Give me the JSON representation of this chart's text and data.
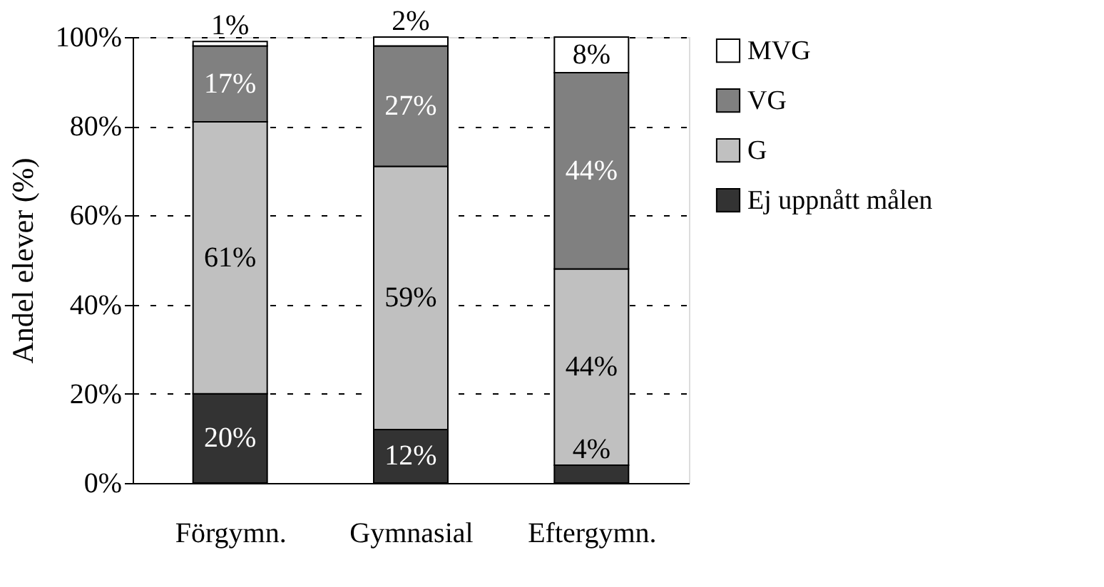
{
  "chart_data": {
    "type": "bar",
    "stacked": true,
    "ylabel": "Andel elever (%)",
    "categories": [
      "Förgymn.",
      "Gymnasial",
      "Eftergymn."
    ],
    "series": [
      {
        "name": "Ej uppnått målen",
        "color": "#333333",
        "values": [
          20,
          12,
          4
        ],
        "value_labels": [
          "20%",
          "12%",
          "4%"
        ]
      },
      {
        "name": "G",
        "color": "#c0c0c0",
        "values": [
          61,
          59,
          44
        ],
        "value_labels": [
          "61%",
          "59%",
          "44%"
        ]
      },
      {
        "name": "VG",
        "color": "#808080",
        "values": [
          17,
          27,
          44
        ],
        "value_labels": [
          "17%",
          "27%",
          "44%"
        ]
      },
      {
        "name": "MVG",
        "color": "#ffffff",
        "values": [
          1,
          2,
          8
        ],
        "value_labels": [
          "1%",
          "2%",
          "8%"
        ]
      }
    ],
    "ylim": [
      0,
      100
    ],
    "yticks": [
      {
        "value": 0,
        "label": "0%"
      },
      {
        "value": 20,
        "label": "20%"
      },
      {
        "value": 40,
        "label": "40%"
      },
      {
        "value": 60,
        "label": "60%"
      },
      {
        "value": 80,
        "label": "80%"
      },
      {
        "value": 100,
        "label": "100%"
      }
    ],
    "grid": "y",
    "legend": "right"
  }
}
